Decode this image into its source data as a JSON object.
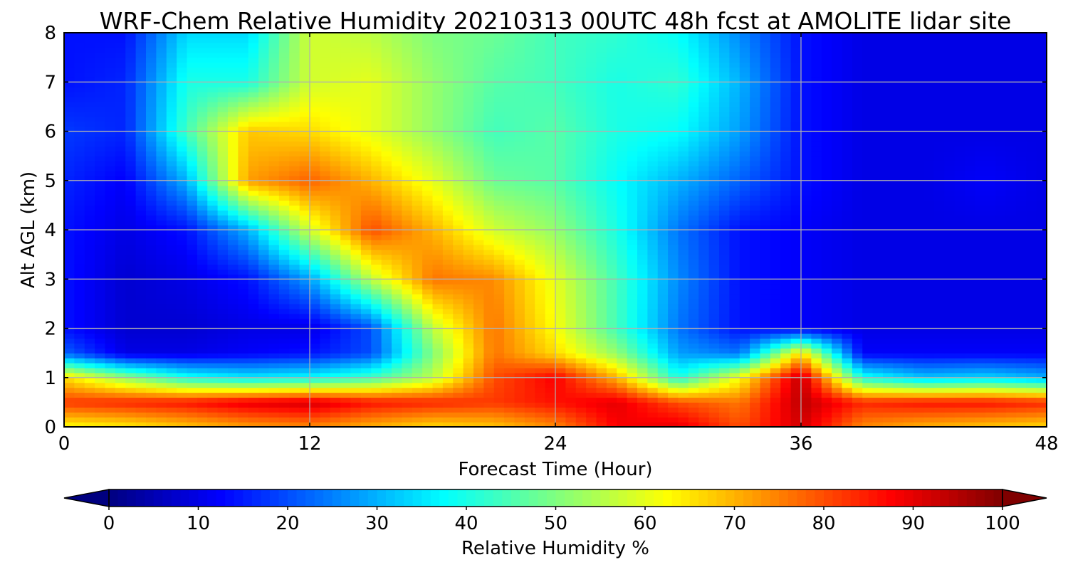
{
  "chart_data": {
    "type": "heatmap",
    "title": "WRF-Chem Relative Humidity 20210313 00UTC 48h fcst at AMOLITE lidar site",
    "xlabel": "Forecast Time (Hour)",
    "ylabel": "Alt AGL (km)",
    "x_range": [
      0,
      48
    ],
    "y_range": [
      0,
      8
    ],
    "x_ticks": [
      0,
      12,
      24,
      36,
      48
    ],
    "y_ticks": [
      0,
      1,
      2,
      3,
      4,
      5,
      6,
      7,
      8
    ],
    "grid": true,
    "colormap": "jet",
    "x": [
      0,
      3,
      6,
      9,
      12,
      15,
      18,
      21,
      24,
      27,
      30,
      33,
      36,
      39,
      42,
      45,
      48
    ],
    "y": [
      0,
      0.5,
      1,
      1.5,
      2,
      3,
      4,
      5,
      6,
      7,
      8
    ],
    "z": [
      [
        62,
        64,
        68,
        72,
        74,
        70,
        66,
        68,
        74,
        88,
        90,
        80,
        92,
        74,
        70,
        68,
        66
      ],
      [
        82,
        84,
        86,
        90,
        92,
        86,
        84,
        82,
        86,
        90,
        80,
        76,
        94,
        84,
        86,
        86,
        84
      ],
      [
        66,
        52,
        40,
        36,
        38,
        44,
        56,
        80,
        88,
        70,
        40,
        62,
        94,
        40,
        32,
        34,
        30
      ],
      [
        22,
        10,
        10,
        12,
        14,
        20,
        50,
        76,
        66,
        52,
        28,
        24,
        66,
        12,
        12,
        12,
        12
      ],
      [
        14,
        8,
        8,
        10,
        10,
        20,
        56,
        76,
        62,
        44,
        24,
        14,
        12,
        10,
        10,
        10,
        10
      ],
      [
        14,
        8,
        10,
        14,
        28,
        56,
        76,
        74,
        60,
        44,
        26,
        14,
        12,
        10,
        10,
        10,
        10
      ],
      [
        14,
        10,
        14,
        30,
        58,
        80,
        70,
        58,
        52,
        40,
        24,
        14,
        12,
        10,
        10,
        10,
        10
      ],
      [
        16,
        12,
        30,
        72,
        78,
        70,
        60,
        48,
        46,
        38,
        30,
        22,
        14,
        10,
        10,
        12,
        10
      ],
      [
        18,
        16,
        44,
        68,
        66,
        60,
        52,
        44,
        46,
        40,
        38,
        28,
        14,
        10,
        10,
        10,
        10
      ],
      [
        14,
        16,
        40,
        40,
        58,
        60,
        52,
        46,
        44,
        40,
        42,
        30,
        14,
        10,
        10,
        10,
        10
      ],
      [
        14,
        14,
        34,
        34,
        58,
        56,
        50,
        48,
        44,
        42,
        38,
        26,
        14,
        10,
        10,
        10,
        10
      ]
    ],
    "colorbar": {
      "label": "Relative Humidity %",
      "range": [
        0,
        100
      ],
      "ticks": [
        0,
        10,
        20,
        30,
        40,
        50,
        60,
        70,
        80,
        90,
        100
      ],
      "extend": "both"
    }
  }
}
